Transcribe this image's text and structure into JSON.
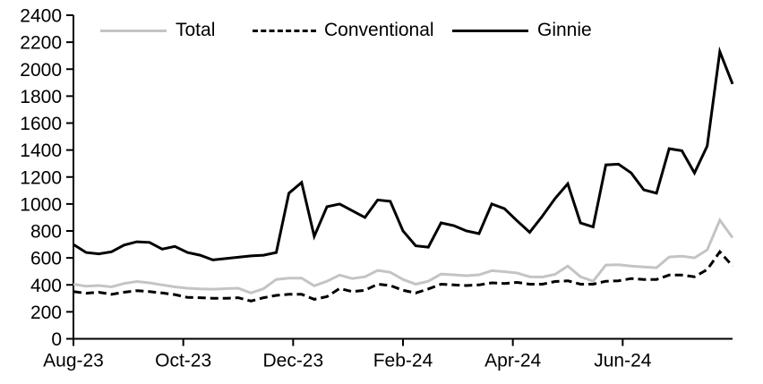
{
  "chart_data": {
    "type": "line",
    "title": "",
    "xlabel": "",
    "ylabel": "",
    "ylim": [
      0,
      2400
    ],
    "ytick_step": 200,
    "grid": false,
    "legend_position": "top",
    "x_axis_months": 12,
    "x_ticks": [
      {
        "label": "Aug-23",
        "month": 0
      },
      {
        "label": "Oct-23",
        "month": 2
      },
      {
        "label": "Dec-23",
        "month": 4
      },
      {
        "label": "Feb-24",
        "month": 6
      },
      {
        "label": "Apr-24",
        "month": 8
      },
      {
        "label": "Jun-24",
        "month": 10
      }
    ],
    "x_unit": "week",
    "series": [
      {
        "name": "Total",
        "color": "#c4c4c4",
        "dash": "solid",
        "values": [
          405,
          390,
          395,
          385,
          410,
          425,
          415,
          400,
          385,
          375,
          370,
          368,
          372,
          375,
          340,
          372,
          440,
          450,
          450,
          393,
          427,
          473,
          447,
          460,
          507,
          493,
          440,
          405,
          427,
          480,
          475,
          468,
          475,
          505,
          498,
          488,
          460,
          458,
          478,
          540,
          460,
          427,
          547,
          550,
          540,
          533,
          527,
          607,
          613,
          600,
          660,
          880,
          750
        ]
      },
      {
        "name": "Conventional",
        "color": "#000000",
        "dash": "dashed",
        "values": [
          350,
          338,
          345,
          330,
          345,
          357,
          350,
          340,
          328,
          307,
          305,
          300,
          300,
          305,
          280,
          305,
          322,
          330,
          330,
          293,
          313,
          373,
          350,
          360,
          405,
          395,
          360,
          340,
          370,
          405,
          400,
          395,
          400,
          415,
          410,
          418,
          405,
          405,
          425,
          430,
          405,
          405,
          427,
          430,
          447,
          440,
          440,
          473,
          473,
          460,
          513,
          645,
          540
        ]
      },
      {
        "name": "Ginnie",
        "color": "#000000",
        "dash": "solid",
        "values": [
          700,
          640,
          630,
          645,
          695,
          720,
          715,
          665,
          685,
          640,
          620,
          585,
          595,
          605,
          615,
          620,
          640,
          1080,
          1160,
          760,
          980,
          1000,
          950,
          900,
          1030,
          1020,
          800,
          690,
          680,
          860,
          840,
          800,
          780,
          1000,
          965,
          875,
          790,
          910,
          1040,
          1150,
          860,
          830,
          1290,
          1295,
          1230,
          1105,
          1080,
          1410,
          1395,
          1230,
          1430,
          2130,
          1890
        ]
      }
    ]
  }
}
